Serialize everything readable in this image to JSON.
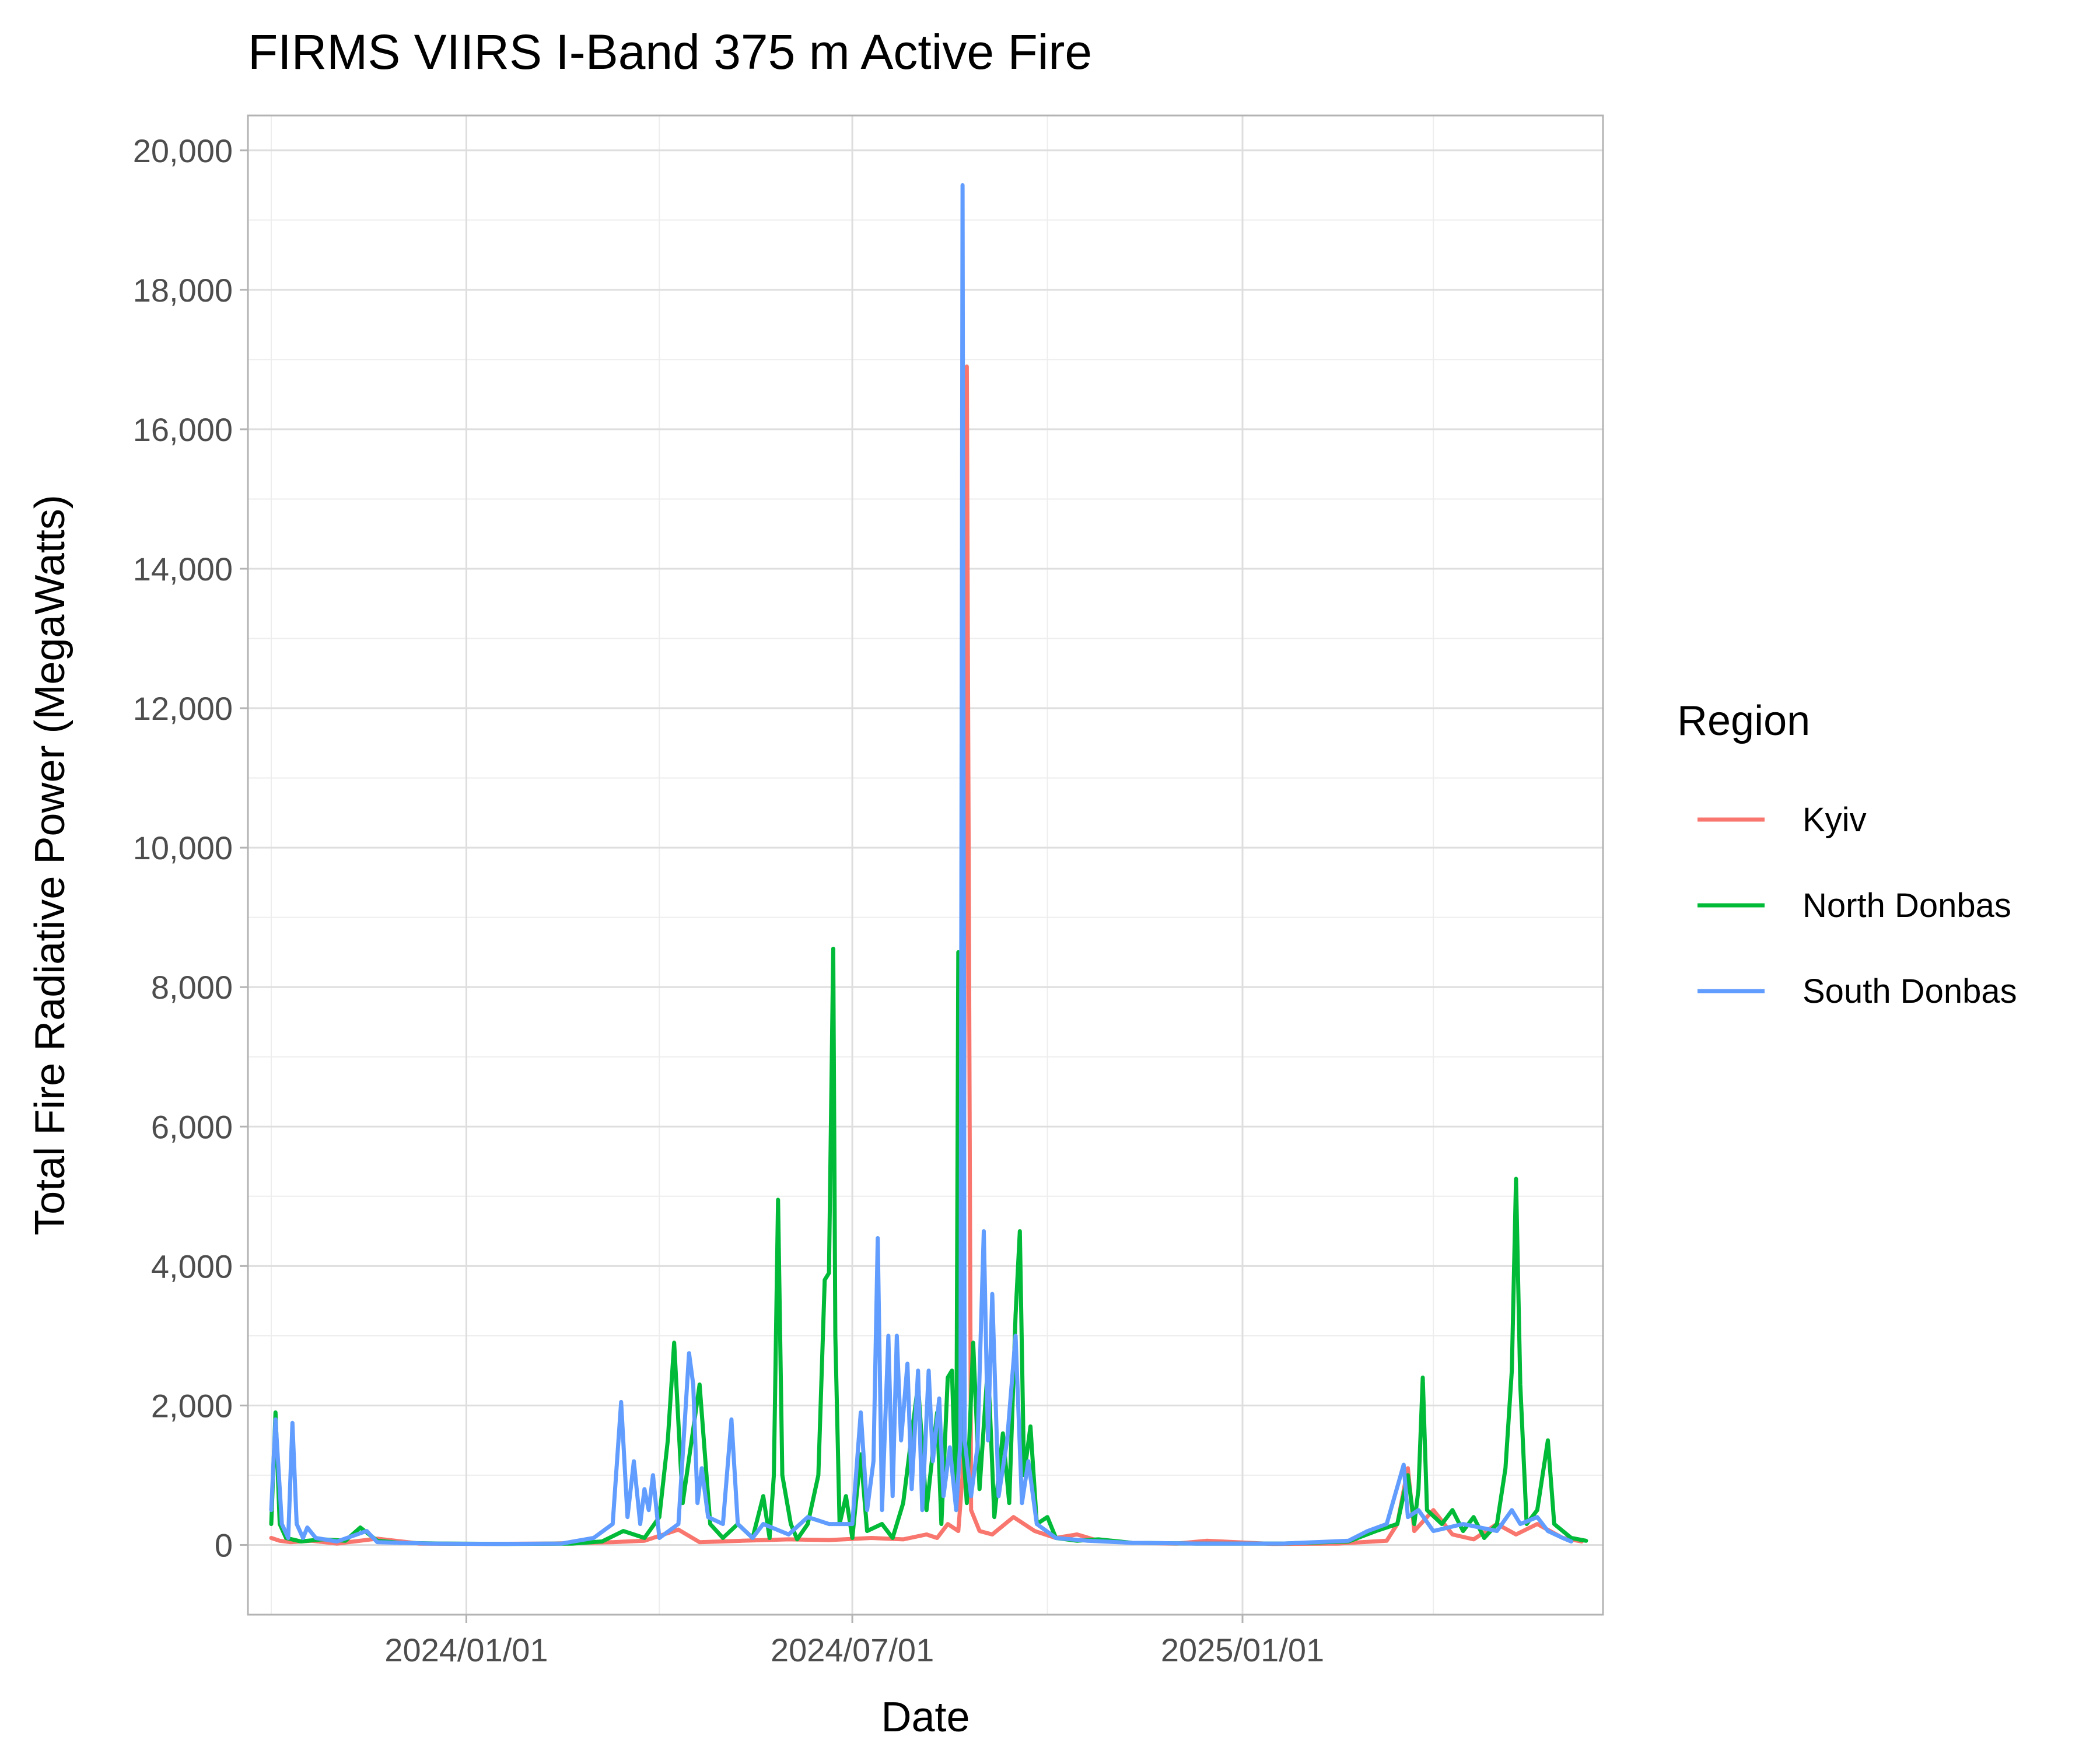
{
  "chart_data": {
    "type": "line",
    "title": "FIRMS VIIRS I-Band 375 m Active Fire",
    "xlabel": "Date",
    "ylabel": "Total Fire Radiative Power (MegaWatts)",
    "x_axis_type": "date",
    "xlim": [
      "2023-09-20",
      "2025-06-20"
    ],
    "ylim": [
      -1000,
      20500
    ],
    "x_ticks": [
      "2024-01-01",
      "2024-07-01",
      "2025-01-01"
    ],
    "x_tick_labels": [
      "2024/01/01",
      "2024/07/01",
      "2025/01/01"
    ],
    "x_minor_ticks": [
      "2023-10-01",
      "2024-04-01",
      "2024-10-01",
      "2025-04-01"
    ],
    "y_ticks": [
      0,
      2000,
      4000,
      6000,
      8000,
      10000,
      12000,
      14000,
      16000,
      18000,
      20000
    ],
    "y_tick_labels": [
      "0",
      "2,000",
      "4,000",
      "6,000",
      "8,000",
      "10,000",
      "12,000",
      "14,000",
      "16,000",
      "18,000",
      "20,000"
    ],
    "y_minor_ticks": [
      1000,
      3000,
      5000,
      7000,
      9000,
      11000,
      13000,
      15000,
      17000,
      19000
    ],
    "grid": true,
    "legend": {
      "title": "Region",
      "position": "right",
      "entries": [
        "Kyiv",
        "North Donbas",
        "South Donbas"
      ]
    },
    "series": [
      {
        "name": "Kyiv",
        "color": "#F8766D",
        "points": [
          [
            "2023-10-01",
            100
          ],
          [
            "2023-10-05",
            60
          ],
          [
            "2023-10-10",
            40
          ],
          [
            "2023-10-20",
            60
          ],
          [
            "2023-11-01",
            20
          ],
          [
            "2023-11-20",
            90
          ],
          [
            "2023-12-10",
            20
          ],
          [
            "2024-01-10",
            15
          ],
          [
            "2024-02-10",
            20
          ],
          [
            "2024-03-10",
            40
          ],
          [
            "2024-03-25",
            60
          ],
          [
            "2024-04-10",
            220
          ],
          [
            "2024-04-20",
            40
          ],
          [
            "2024-05-10",
            60
          ],
          [
            "2024-06-01",
            80
          ],
          [
            "2024-06-20",
            70
          ],
          [
            "2024-07-10",
            100
          ],
          [
            "2024-07-25",
            80
          ],
          [
            "2024-08-05",
            150
          ],
          [
            "2024-08-10",
            100
          ],
          [
            "2024-08-15",
            300
          ],
          [
            "2024-08-20",
            200
          ],
          [
            "2024-08-22",
            1000
          ],
          [
            "2024-08-23",
            8000
          ],
          [
            "2024-08-24",
            16900
          ],
          [
            "2024-08-25",
            9000
          ],
          [
            "2024-08-26",
            500
          ],
          [
            "2024-08-30",
            200
          ],
          [
            "2024-09-05",
            150
          ],
          [
            "2024-09-15",
            400
          ],
          [
            "2024-09-25",
            200
          ],
          [
            "2024-10-05",
            100
          ],
          [
            "2024-10-15",
            150
          ],
          [
            "2024-10-25",
            60
          ],
          [
            "2024-11-10",
            30
          ],
          [
            "2024-12-01",
            20
          ],
          [
            "2024-12-15",
            60
          ],
          [
            "2025-01-15",
            15
          ],
          [
            "2025-02-15",
            20
          ],
          [
            "2025-03-10",
            60
          ],
          [
            "2025-03-15",
            300
          ],
          [
            "2025-03-20",
            1100
          ],
          [
            "2025-03-23",
            200
          ],
          [
            "2025-04-01",
            500
          ],
          [
            "2025-04-10",
            150
          ],
          [
            "2025-04-20",
            80
          ],
          [
            "2025-05-01",
            300
          ],
          [
            "2025-05-10",
            150
          ],
          [
            "2025-05-20",
            300
          ],
          [
            "2025-06-01",
            100
          ],
          [
            "2025-06-10",
            50
          ]
        ]
      },
      {
        "name": "North Donbas",
        "color": "#00BA38",
        "points": [
          [
            "2023-10-01",
            300
          ],
          [
            "2023-10-03",
            1900
          ],
          [
            "2023-10-05",
            300
          ],
          [
            "2023-10-08",
            100
          ],
          [
            "2023-10-15",
            50
          ],
          [
            "2023-10-25",
            80
          ],
          [
            "2023-11-05",
            60
          ],
          [
            "2023-11-12",
            250
          ],
          [
            "2023-11-20",
            60
          ],
          [
            "2023-12-01",
            30
          ],
          [
            "2023-12-20",
            20
          ],
          [
            "2024-01-20",
            15
          ],
          [
            "2024-02-20",
            20
          ],
          [
            "2024-03-05",
            50
          ],
          [
            "2024-03-15",
            200
          ],
          [
            "2024-03-25",
            100
          ],
          [
            "2024-04-01",
            400
          ],
          [
            "2024-04-05",
            1500
          ],
          [
            "2024-04-08",
            2900
          ],
          [
            "2024-04-12",
            600
          ],
          [
            "2024-04-20",
            2300
          ],
          [
            "2024-04-25",
            300
          ],
          [
            "2024-05-01",
            100
          ],
          [
            "2024-05-08",
            300
          ],
          [
            "2024-05-15",
            100
          ],
          [
            "2024-05-20",
            700
          ],
          [
            "2024-05-23",
            100
          ],
          [
            "2024-05-25",
            1000
          ],
          [
            "2024-05-27",
            4950
          ],
          [
            "2024-05-29",
            1000
          ],
          [
            "2024-06-02",
            300
          ],
          [
            "2024-06-05",
            80
          ],
          [
            "2024-06-10",
            300
          ],
          [
            "2024-06-15",
            1000
          ],
          [
            "2024-06-18",
            3800
          ],
          [
            "2024-06-20",
            3900
          ],
          [
            "2024-06-22",
            8550
          ],
          [
            "2024-06-23",
            3000
          ],
          [
            "2024-06-25",
            300
          ],
          [
            "2024-06-28",
            700
          ],
          [
            "2024-07-01",
            100
          ],
          [
            "2024-07-05",
            1300
          ],
          [
            "2024-07-08",
            200
          ],
          [
            "2024-07-15",
            300
          ],
          [
            "2024-07-20",
            100
          ],
          [
            "2024-07-25",
            600
          ],
          [
            "2024-08-01",
            2300
          ],
          [
            "2024-08-05",
            500
          ],
          [
            "2024-08-10",
            1900
          ],
          [
            "2024-08-12",
            300
          ],
          [
            "2024-08-15",
            2400
          ],
          [
            "2024-08-17",
            2500
          ],
          [
            "2024-08-19",
            500
          ],
          [
            "2024-08-20",
            8500
          ],
          [
            "2024-08-21",
            2000
          ],
          [
            "2024-08-24",
            600
          ],
          [
            "2024-08-27",
            2900
          ],
          [
            "2024-08-30",
            800
          ],
          [
            "2024-09-03",
            2600
          ],
          [
            "2024-09-06",
            400
          ],
          [
            "2024-09-10",
            1600
          ],
          [
            "2024-09-13",
            600
          ],
          [
            "2024-09-16",
            3300
          ],
          [
            "2024-09-18",
            4500
          ],
          [
            "2024-09-20",
            1000
          ],
          [
            "2024-09-23",
            1700
          ],
          [
            "2024-09-26",
            300
          ],
          [
            "2024-10-01",
            400
          ],
          [
            "2024-10-05",
            100
          ],
          [
            "2024-10-15",
            60
          ],
          [
            "2024-10-25",
            80
          ],
          [
            "2024-11-10",
            30
          ],
          [
            "2024-12-10",
            20
          ],
          [
            "2025-01-20",
            20
          ],
          [
            "2025-02-20",
            50
          ],
          [
            "2025-03-05",
            200
          ],
          [
            "2025-03-15",
            300
          ],
          [
            "2025-03-20",
            1000
          ],
          [
            "2025-03-23",
            300
          ],
          [
            "2025-03-25",
            800
          ],
          [
            "2025-03-27",
            2400
          ],
          [
            "2025-03-29",
            500
          ],
          [
            "2025-04-05",
            300
          ],
          [
            "2025-04-10",
            500
          ],
          [
            "2025-04-15",
            200
          ],
          [
            "2025-04-20",
            400
          ],
          [
            "2025-04-25",
            100
          ],
          [
            "2025-05-01",
            300
          ],
          [
            "2025-05-05",
            1100
          ],
          [
            "2025-05-08",
            2500
          ],
          [
            "2025-05-10",
            5250
          ],
          [
            "2025-05-12",
            2300
          ],
          [
            "2025-05-15",
            300
          ],
          [
            "2025-05-20",
            500
          ],
          [
            "2025-05-25",
            1500
          ],
          [
            "2025-05-28",
            300
          ],
          [
            "2025-06-05",
            100
          ],
          [
            "2025-06-12",
            60
          ]
        ]
      },
      {
        "name": "South Donbas",
        "color": "#619CFF",
        "points": [
          [
            "2023-10-01",
            500
          ],
          [
            "2023-10-03",
            1800
          ],
          [
            "2023-10-06",
            300
          ],
          [
            "2023-10-09",
            100
          ],
          [
            "2023-10-11",
            1750
          ],
          [
            "2023-10-13",
            300
          ],
          [
            "2023-10-16",
            100
          ],
          [
            "2023-10-18",
            250
          ],
          [
            "2023-10-22",
            100
          ],
          [
            "2023-11-01",
            50
          ],
          [
            "2023-11-15",
            200
          ],
          [
            "2023-11-20",
            40
          ],
          [
            "2023-12-15",
            20
          ],
          [
            "2024-01-15",
            15
          ],
          [
            "2024-02-15",
            20
          ],
          [
            "2024-03-01",
            100
          ],
          [
            "2024-03-10",
            300
          ],
          [
            "2024-03-14",
            2050
          ],
          [
            "2024-03-17",
            400
          ],
          [
            "2024-03-20",
            1200
          ],
          [
            "2024-03-23",
            300
          ],
          [
            "2024-03-25",
            800
          ],
          [
            "2024-03-27",
            500
          ],
          [
            "2024-03-29",
            1000
          ],
          [
            "2024-04-01",
            100
          ],
          [
            "2024-04-10",
            300
          ],
          [
            "2024-04-15",
            2750
          ],
          [
            "2024-04-17",
            2300
          ],
          [
            "2024-04-19",
            600
          ],
          [
            "2024-04-21",
            1100
          ],
          [
            "2024-04-24",
            400
          ],
          [
            "2024-05-01",
            300
          ],
          [
            "2024-05-05",
            1800
          ],
          [
            "2024-05-08",
            300
          ],
          [
            "2024-05-15",
            100
          ],
          [
            "2024-05-20",
            300
          ],
          [
            "2024-06-01",
            150
          ],
          [
            "2024-06-10",
            400
          ],
          [
            "2024-06-20",
            300
          ],
          [
            "2024-07-01",
            300
          ],
          [
            "2024-07-05",
            1900
          ],
          [
            "2024-07-08",
            500
          ],
          [
            "2024-07-11",
            1200
          ],
          [
            "2024-07-13",
            4400
          ],
          [
            "2024-07-15",
            500
          ],
          [
            "2024-07-18",
            3000
          ],
          [
            "2024-07-20",
            700
          ],
          [
            "2024-07-22",
            3000
          ],
          [
            "2024-07-24",
            1500
          ],
          [
            "2024-07-27",
            2600
          ],
          [
            "2024-07-29",
            800
          ],
          [
            "2024-08-01",
            2500
          ],
          [
            "2024-08-03",
            500
          ],
          [
            "2024-08-06",
            2500
          ],
          [
            "2024-08-08",
            1200
          ],
          [
            "2024-08-11",
            2100
          ],
          [
            "2024-08-13",
            700
          ],
          [
            "2024-08-16",
            1400
          ],
          [
            "2024-08-19",
            500
          ],
          [
            "2024-08-21",
            1500
          ],
          [
            "2024-08-22",
            19500
          ],
          [
            "2024-08-23",
            1500
          ],
          [
            "2024-08-26",
            700
          ],
          [
            "2024-08-29",
            1400
          ],
          [
            "2024-09-01",
            4500
          ],
          [
            "2024-09-03",
            1500
          ],
          [
            "2024-09-05",
            3600
          ],
          [
            "2024-09-08",
            700
          ],
          [
            "2024-09-12",
            1500
          ],
          [
            "2024-09-16",
            3000
          ],
          [
            "2024-09-19",
            600
          ],
          [
            "2024-09-22",
            1200
          ],
          [
            "2024-09-26",
            300
          ],
          [
            "2024-10-05",
            100
          ],
          [
            "2024-10-20",
            60
          ],
          [
            "2024-11-10",
            30
          ],
          [
            "2024-12-10",
            20
          ],
          [
            "2025-01-20",
            20
          ],
          [
            "2025-02-20",
            60
          ],
          [
            "2025-03-01",
            200
          ],
          [
            "2025-03-10",
            300
          ],
          [
            "2025-03-18",
            1150
          ],
          [
            "2025-03-20",
            400
          ],
          [
            "2025-03-25",
            500
          ],
          [
            "2025-04-01",
            200
          ],
          [
            "2025-04-15",
            300
          ],
          [
            "2025-05-01",
            200
          ],
          [
            "2025-05-08",
            500
          ],
          [
            "2025-05-12",
            300
          ],
          [
            "2025-05-20",
            400
          ],
          [
            "2025-05-25",
            200
          ],
          [
            "2025-06-01",
            100
          ],
          [
            "2025-06-05",
            50
          ]
        ]
      }
    ]
  }
}
